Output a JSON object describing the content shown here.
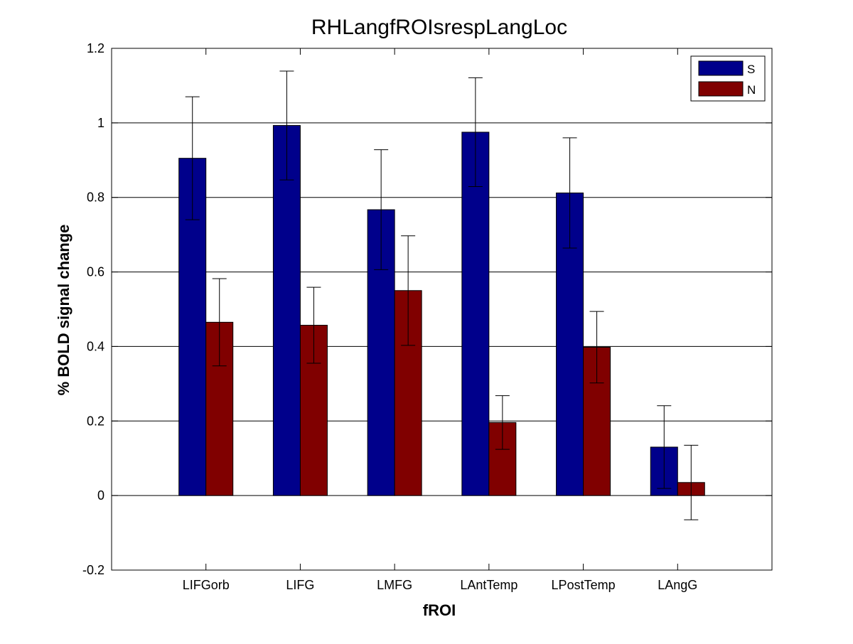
{
  "chart_data": {
    "type": "bar",
    "title": "RHLangfROIsrespLangLoc",
    "xlabel": "fROI",
    "ylabel": "% BOLD signal change",
    "categories": [
      "LIFGorb",
      "LIFG",
      "LMFG",
      "LAntTemp",
      "LPostTemp",
      "LAngG"
    ],
    "series": [
      {
        "name": "S",
        "color": "#00008b",
        "values": [
          0.905,
          0.993,
          0.767,
          0.975,
          0.812,
          0.13
        ],
        "error": [
          0.165,
          0.146,
          0.161,
          0.146,
          0.148,
          0.111
        ]
      },
      {
        "name": "N",
        "color": "#800000",
        "values": [
          0.465,
          0.457,
          0.55,
          0.196,
          0.398,
          0.035
        ],
        "error": [
          0.117,
          0.102,
          0.147,
          0.072,
          0.096,
          0.1
        ]
      }
    ],
    "ylim": [
      -0.2,
      1.2
    ],
    "yticks": [
      "-0.2",
      "0",
      "0.2",
      "0.4",
      "0.6",
      "0.8",
      "1",
      "1.2"
    ],
    "ytick_values": [
      -0.2,
      0,
      0.2,
      0.4,
      0.6,
      0.8,
      1,
      1.2
    ],
    "grid": "horizontal",
    "legend_position": "top-right"
  }
}
